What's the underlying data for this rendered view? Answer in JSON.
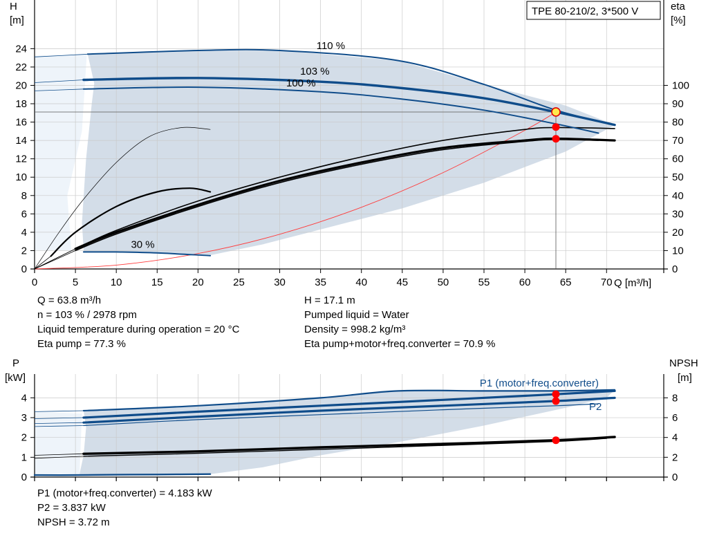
{
  "chart_data": {
    "type": "line",
    "pump_model": "TPE 80-210/2, 3*500 V",
    "upper": {
      "x_label": "Q [m³/h]",
      "x_ticks": [
        0,
        5,
        10,
        15,
        20,
        25,
        30,
        35,
        40,
        45,
        50,
        55,
        60,
        65,
        70
      ],
      "xlim": [
        0,
        77
      ],
      "left_label_top": "H",
      "left_label_unit": "[m]",
      "left_ticks": [
        0,
        2,
        4,
        6,
        8,
        10,
        12,
        14,
        16,
        18,
        20,
        22,
        24
      ],
      "ylim_left": [
        0,
        29.3
      ],
      "right_label_top": "eta",
      "right_label_unit": "[%]",
      "right_ticks": [
        0,
        10,
        20,
        30,
        40,
        50,
        60,
        70,
        80,
        90,
        100
      ],
      "ylim_right": [
        0,
        146.5
      ],
      "operating_region": {
        "top": [
          [
            6.5,
            23.4
          ],
          [
            20,
            23.8
          ],
          [
            30,
            23.8
          ],
          [
            44.5,
            22.7
          ],
          [
            55,
            20.1
          ],
          [
            65,
            17.8
          ],
          [
            71,
            15.7
          ]
        ],
        "bottom": [
          [
            70,
            15.2
          ],
          [
            65,
            12.8
          ],
          [
            55,
            9.4
          ],
          [
            45,
            6.6
          ],
          [
            35,
            4.3
          ],
          [
            28,
            2.7
          ],
          [
            21.5,
            1.5
          ]
        ],
        "left": [
          [
            21.5,
            1.5
          ],
          [
            10,
            1.8
          ],
          [
            6,
            1.8
          ],
          [
            6,
            2.2
          ],
          [
            5.8,
            5
          ],
          [
            6.3,
            12
          ],
          [
            7,
            18
          ],
          [
            7.3,
            20.2
          ],
          [
            6.5,
            23.4
          ]
        ],
        "left_extension": [
          [
            0,
            2
          ],
          [
            4.5,
            2
          ],
          [
            4,
            8
          ],
          [
            5.8,
            15
          ],
          [
            6.4,
            23.4
          ],
          [
            0,
            23.2
          ]
        ]
      },
      "head_curves": [
        {
          "label": "110 %",
          "points": [
            [
              0,
              23.1
            ],
            [
              6.5,
              23.4
            ],
            [
              20,
              23.8
            ],
            [
              30,
              23.8
            ],
            [
              44.5,
              22.7
            ],
            [
              55,
              20.1
            ],
            [
              63.8,
              17.3
            ],
            [
              71,
              15.7
            ]
          ],
          "thin_until": 6.5
        },
        {
          "label": "103 %",
          "points": [
            [
              0,
              20.3
            ],
            [
              6.0,
              20.6
            ],
            [
              20,
              20.8
            ],
            [
              35,
              20.4
            ],
            [
              45,
              19.7
            ],
            [
              55,
              18.6
            ],
            [
              63.8,
              17.1
            ],
            [
              71,
              15.7
            ]
          ],
          "thin_until": 6.0
        },
        {
          "label": "100 %",
          "points": [
            [
              0,
              19.4
            ],
            [
              6.0,
              19.6
            ],
            [
              20,
              19.8
            ],
            [
              35,
              19.3
            ],
            [
              45,
              18.5
            ],
            [
              55,
              17.3
            ],
            [
              63.8,
              15.8
            ],
            [
              69,
              14.8
            ]
          ],
          "thin_until": 6.0
        },
        {
          "label": "30 %",
          "points": [
            [
              6,
              1.85
            ],
            [
              10,
              1.85
            ],
            [
              15,
              1.75
            ],
            [
              21.5,
              1.45
            ]
          ],
          "thin_until": 0
        }
      ],
      "eta_curves": [
        {
          "name": "eta_110",
          "points": [
            [
              0,
              0
            ],
            [
              5,
              11
            ],
            [
              10,
              21
            ],
            [
              20,
              37
            ],
            [
              30,
              50
            ],
            [
              40,
              61
            ],
            [
              50,
              70
            ],
            [
              60,
              76
            ],
            [
              63.8,
              77
            ],
            [
              71,
              76.5
            ]
          ],
          "width": 1.6,
          "thin_until": 6.0
        },
        {
          "name": "eta_103",
          "points": [
            [
              0,
              0
            ],
            [
              5,
              11
            ],
            [
              10,
              20
            ],
            [
              20,
              35
            ],
            [
              30,
              48
            ],
            [
              40,
              58
            ],
            [
              50,
              66
            ],
            [
              60,
              70
            ],
            [
              63.8,
              71
            ],
            [
              71,
              70
            ]
          ],
          "width": 3.2,
          "thin_until": 6.0
        },
        {
          "name": "eta_100",
          "points": [
            [
              0,
              0
            ],
            [
              5,
              10
            ],
            [
              10,
              19
            ],
            [
              20,
              34
            ],
            [
              30,
              47
            ],
            [
              40,
              57
            ],
            [
              50,
              65
            ],
            [
              60,
              69.5
            ],
            [
              63.8,
              70.5
            ],
            [
              69,
              70
            ]
          ],
          "width": 1.6,
          "thin_until": 6.0
        },
        {
          "name": "eta_30",
          "points": [
            [
              0,
              0
            ],
            [
              2,
              7
            ],
            [
              5,
              20
            ],
            [
              10,
              34
            ],
            [
              15,
              42
            ],
            [
              19,
              44
            ],
            [
              21.5,
              42
            ]
          ],
          "width": 2.2,
          "thin_until": 2.0
        },
        {
          "name": "eta_thin_left",
          "points": [
            [
              0,
              0
            ],
            [
              3,
              20
            ],
            [
              6,
              38
            ],
            [
              10,
              58
            ],
            [
              14,
              72
            ],
            [
              18,
              77
            ],
            [
              21.5,
              76
            ]
          ],
          "width": 0.7,
          "thin_until": 0
        }
      ],
      "system_curve": [
        [
          0,
          0
        ],
        [
          10,
          0.42
        ],
        [
          20,
          1.68
        ],
        [
          30,
          3.78
        ],
        [
          40,
          6.72
        ],
        [
          50,
          10.5
        ],
        [
          60,
          15.1
        ],
        [
          63.8,
          17.1
        ]
      ],
      "operating_points": [
        {
          "name": "duty-point-head",
          "x": 63.8,
          "y": 17.1,
          "axis": "left",
          "style": "yellow"
        },
        {
          "name": "duty-point-eta",
          "x": 63.8,
          "y": 77.3,
          "axis": "right",
          "style": "red"
        },
        {
          "name": "duty-point-eta-total",
          "x": 63.8,
          "y": 70.9,
          "axis": "right",
          "style": "red"
        }
      ],
      "duty_lines": {
        "x": 63.8,
        "y": 17.1
      }
    },
    "lower": {
      "left_label_top": "P",
      "left_label_unit": "[kW]",
      "left_ticks": [
        0,
        1,
        2,
        3,
        4
      ],
      "ylim_left": [
        0,
        5.2
      ],
      "right_label_top": "NPSH",
      "right_label_unit": "[m]",
      "right_ticks": [
        0,
        2,
        4,
        6,
        8
      ],
      "ylim_right": [
        0,
        10.4
      ],
      "power_region": {
        "top": [
          [
            6,
            3.35
          ],
          [
            20,
            3.6
          ],
          [
            35,
            4.0
          ],
          [
            44.5,
            4.35
          ],
          [
            55,
            4.35
          ],
          [
            71,
            4.4
          ]
        ],
        "bottom": [
          [
            70,
            4.0
          ],
          [
            65,
            3.5
          ],
          [
            55,
            2.6
          ],
          [
            45,
            1.8
          ],
          [
            35,
            1.1
          ],
          [
            28,
            0.5
          ],
          [
            21.5,
            0.15
          ]
        ],
        "left": [
          [
            21.5,
            0.15
          ],
          [
            5.5,
            0.15
          ],
          [
            6,
            1.1
          ],
          [
            6.3,
            2.5
          ],
          [
            6,
            3.35
          ]
        ],
        "left_extension": [
          [
            0,
            0.15
          ],
          [
            5.5,
            0.15
          ],
          [
            5.8,
            3.2
          ],
          [
            0,
            3.3
          ]
        ]
      },
      "power_curves": [
        {
          "name": "P1_110",
          "points": [
            [
              0,
              3.3
            ],
            [
              6,
              3.35
            ],
            [
              20,
              3.6
            ],
            [
              35,
              4.0
            ],
            [
              44.5,
              4.35
            ],
            [
              55,
              4.35
            ],
            [
              63.8,
              4.35
            ],
            [
              71,
              4.4
            ]
          ],
          "width": 2.2,
          "thin_until": 6
        },
        {
          "name": "P1_103",
          "points": [
            [
              0,
              2.95
            ],
            [
              6,
              3.0
            ],
            [
              20,
              3.3
            ],
            [
              35,
              3.6
            ],
            [
              50,
              3.9
            ],
            [
              63.8,
              4.18
            ],
            [
              71,
              4.35
            ]
          ],
          "width": 3.2,
          "thin_until": 6
        },
        {
          "name": "P2_103",
          "points": [
            [
              0,
              2.7
            ],
            [
              6,
              2.75
            ],
            [
              20,
              3.05
            ],
            [
              35,
              3.35
            ],
            [
              50,
              3.6
            ],
            [
              63.8,
              3.84
            ],
            [
              71,
              4.0
            ]
          ],
          "width": 3.2,
          "thin_until": 6
        },
        {
          "name": "P2_100",
          "points": [
            [
              0,
              2.55
            ],
            [
              6,
              2.6
            ],
            [
              20,
              2.9
            ],
            [
              35,
              3.15
            ],
            [
              50,
              3.4
            ],
            [
              63.8,
              3.6
            ],
            [
              69,
              3.7
            ]
          ],
          "width": 1.2,
          "thin_until": 6
        },
        {
          "name": "P_30",
          "points": [
            [
              0,
              0.1
            ],
            [
              5,
              0.1
            ],
            [
              10,
              0.12
            ],
            [
              15,
              0.13
            ],
            [
              21.5,
              0.15
            ]
          ],
          "width": 2.4,
          "thin_until": 2
        }
      ],
      "npsh_curves": [
        {
          "name": "NPSH_110",
          "points": [
            [
              0,
              2.2
            ],
            [
              6,
              2.35
            ],
            [
              20,
              2.6
            ],
            [
              35,
              3.0
            ],
            [
              50,
              3.35
            ],
            [
              63.8,
              3.72
            ],
            [
              71,
              4.05
            ]
          ],
          "width": 3.4,
          "thin_until": 6
        },
        {
          "name": "NPSH_100",
          "points": [
            [
              0,
              1.9
            ],
            [
              6,
              2.1
            ],
            [
              20,
              2.4
            ],
            [
              35,
              2.8
            ],
            [
              50,
              3.2
            ],
            [
              63.8,
              3.6
            ],
            [
              70,
              3.9
            ]
          ],
          "width": 1.4,
          "thin_until": 6
        }
      ],
      "operating_points": [
        {
          "name": "duty-point-p1",
          "x": 63.8,
          "y": 4.183,
          "axis": "left"
        },
        {
          "name": "duty-point-p2",
          "x": 63.8,
          "y": 3.837,
          "axis": "left"
        },
        {
          "name": "duty-point-npsh",
          "x": 63.8,
          "y": 3.72,
          "axis": "right"
        }
      ],
      "curve_labels": {
        "p1": "P1 (motor+freq.converter)",
        "p2": "P2"
      }
    }
  },
  "operating_info": {
    "q": "Q = 63.8 m³/h",
    "n": "n = 103 % / 2978 rpm",
    "liquid_temp": "Liquid temperature during operation = 20 °C",
    "eta_pump": "Eta pump = 77.3 %",
    "h": "H = 17.1 m",
    "pumped_liquid": "Pumped liquid = Water",
    "density": "Density = 998.2 kg/m³",
    "eta_total": "Eta pump+motor+freq.converter = 70.9 %"
  },
  "power_info": {
    "p1": "P1 (motor+freq.converter) = 4.183 kW",
    "p2": "P2 = 3.837 kW",
    "npsh": "NPSH = 3.72 m"
  },
  "colors": {
    "curve_blue": "#0f4c8a",
    "region_fill": "#d3dde8",
    "region_light": "#eef4fa",
    "grid": "#c9c9c9",
    "system_curve": "#ff3b3b",
    "point_red": "#ff0000",
    "point_yellow": "#ffe94d"
  }
}
